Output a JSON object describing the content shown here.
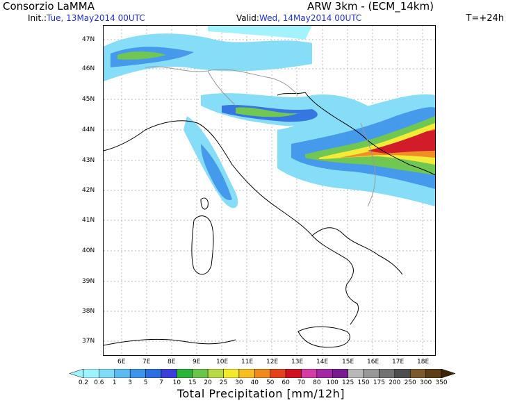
{
  "header": {
    "org": "Consorzio LaMMA",
    "init_label": "Init.:",
    "init_value": "Tue, 13May2014 00UTC",
    "valid_label": "Valid:",
    "valid_value": "Wed, 14May2014 00UTC",
    "model": "ARW 3km - (ECM_14km)",
    "step": "T=+24h"
  },
  "map": {
    "lat_labels": [
      "47N",
      "46N",
      "45N",
      "44N",
      "43N",
      "42N",
      "41N",
      "40N",
      "39N",
      "38N",
      "37N"
    ],
    "lon_labels": [
      "6E",
      "7E",
      "8E",
      "9E",
      "10E",
      "11E",
      "12E",
      "13E",
      "14E",
      "15E",
      "16E",
      "17E",
      "18E"
    ],
    "lat_range": [
      36.5,
      47.3
    ],
    "lon_range": [
      5.2,
      18.8
    ]
  },
  "legend": {
    "title": "Total Precipitation [mm/12h]",
    "labels": [
      "0.2",
      "0.6",
      "1",
      "3",
      "5",
      "7",
      "10",
      "15",
      "20",
      "25",
      "30",
      "40",
      "50",
      "60",
      "70",
      "80",
      "100",
      "125",
      "150",
      "175",
      "200",
      "250",
      "300",
      "350"
    ],
    "colors": [
      "#9ff3ff",
      "#7fdcf7",
      "#5bbcf2",
      "#3d95ea",
      "#2c6fe0",
      "#3a3fd8",
      "#2bb43a",
      "#69c64a",
      "#b7da45",
      "#f3ea2d",
      "#f7bd21",
      "#f08a1a",
      "#e2431b",
      "#d1101f",
      "#d53ca5",
      "#a328a3",
      "#7a1a93",
      "#b8b8b8",
      "#979797",
      "#727272",
      "#4e4e4e",
      "#7a5a2c",
      "#5b3e16",
      "#3b2308"
    ]
  }
}
